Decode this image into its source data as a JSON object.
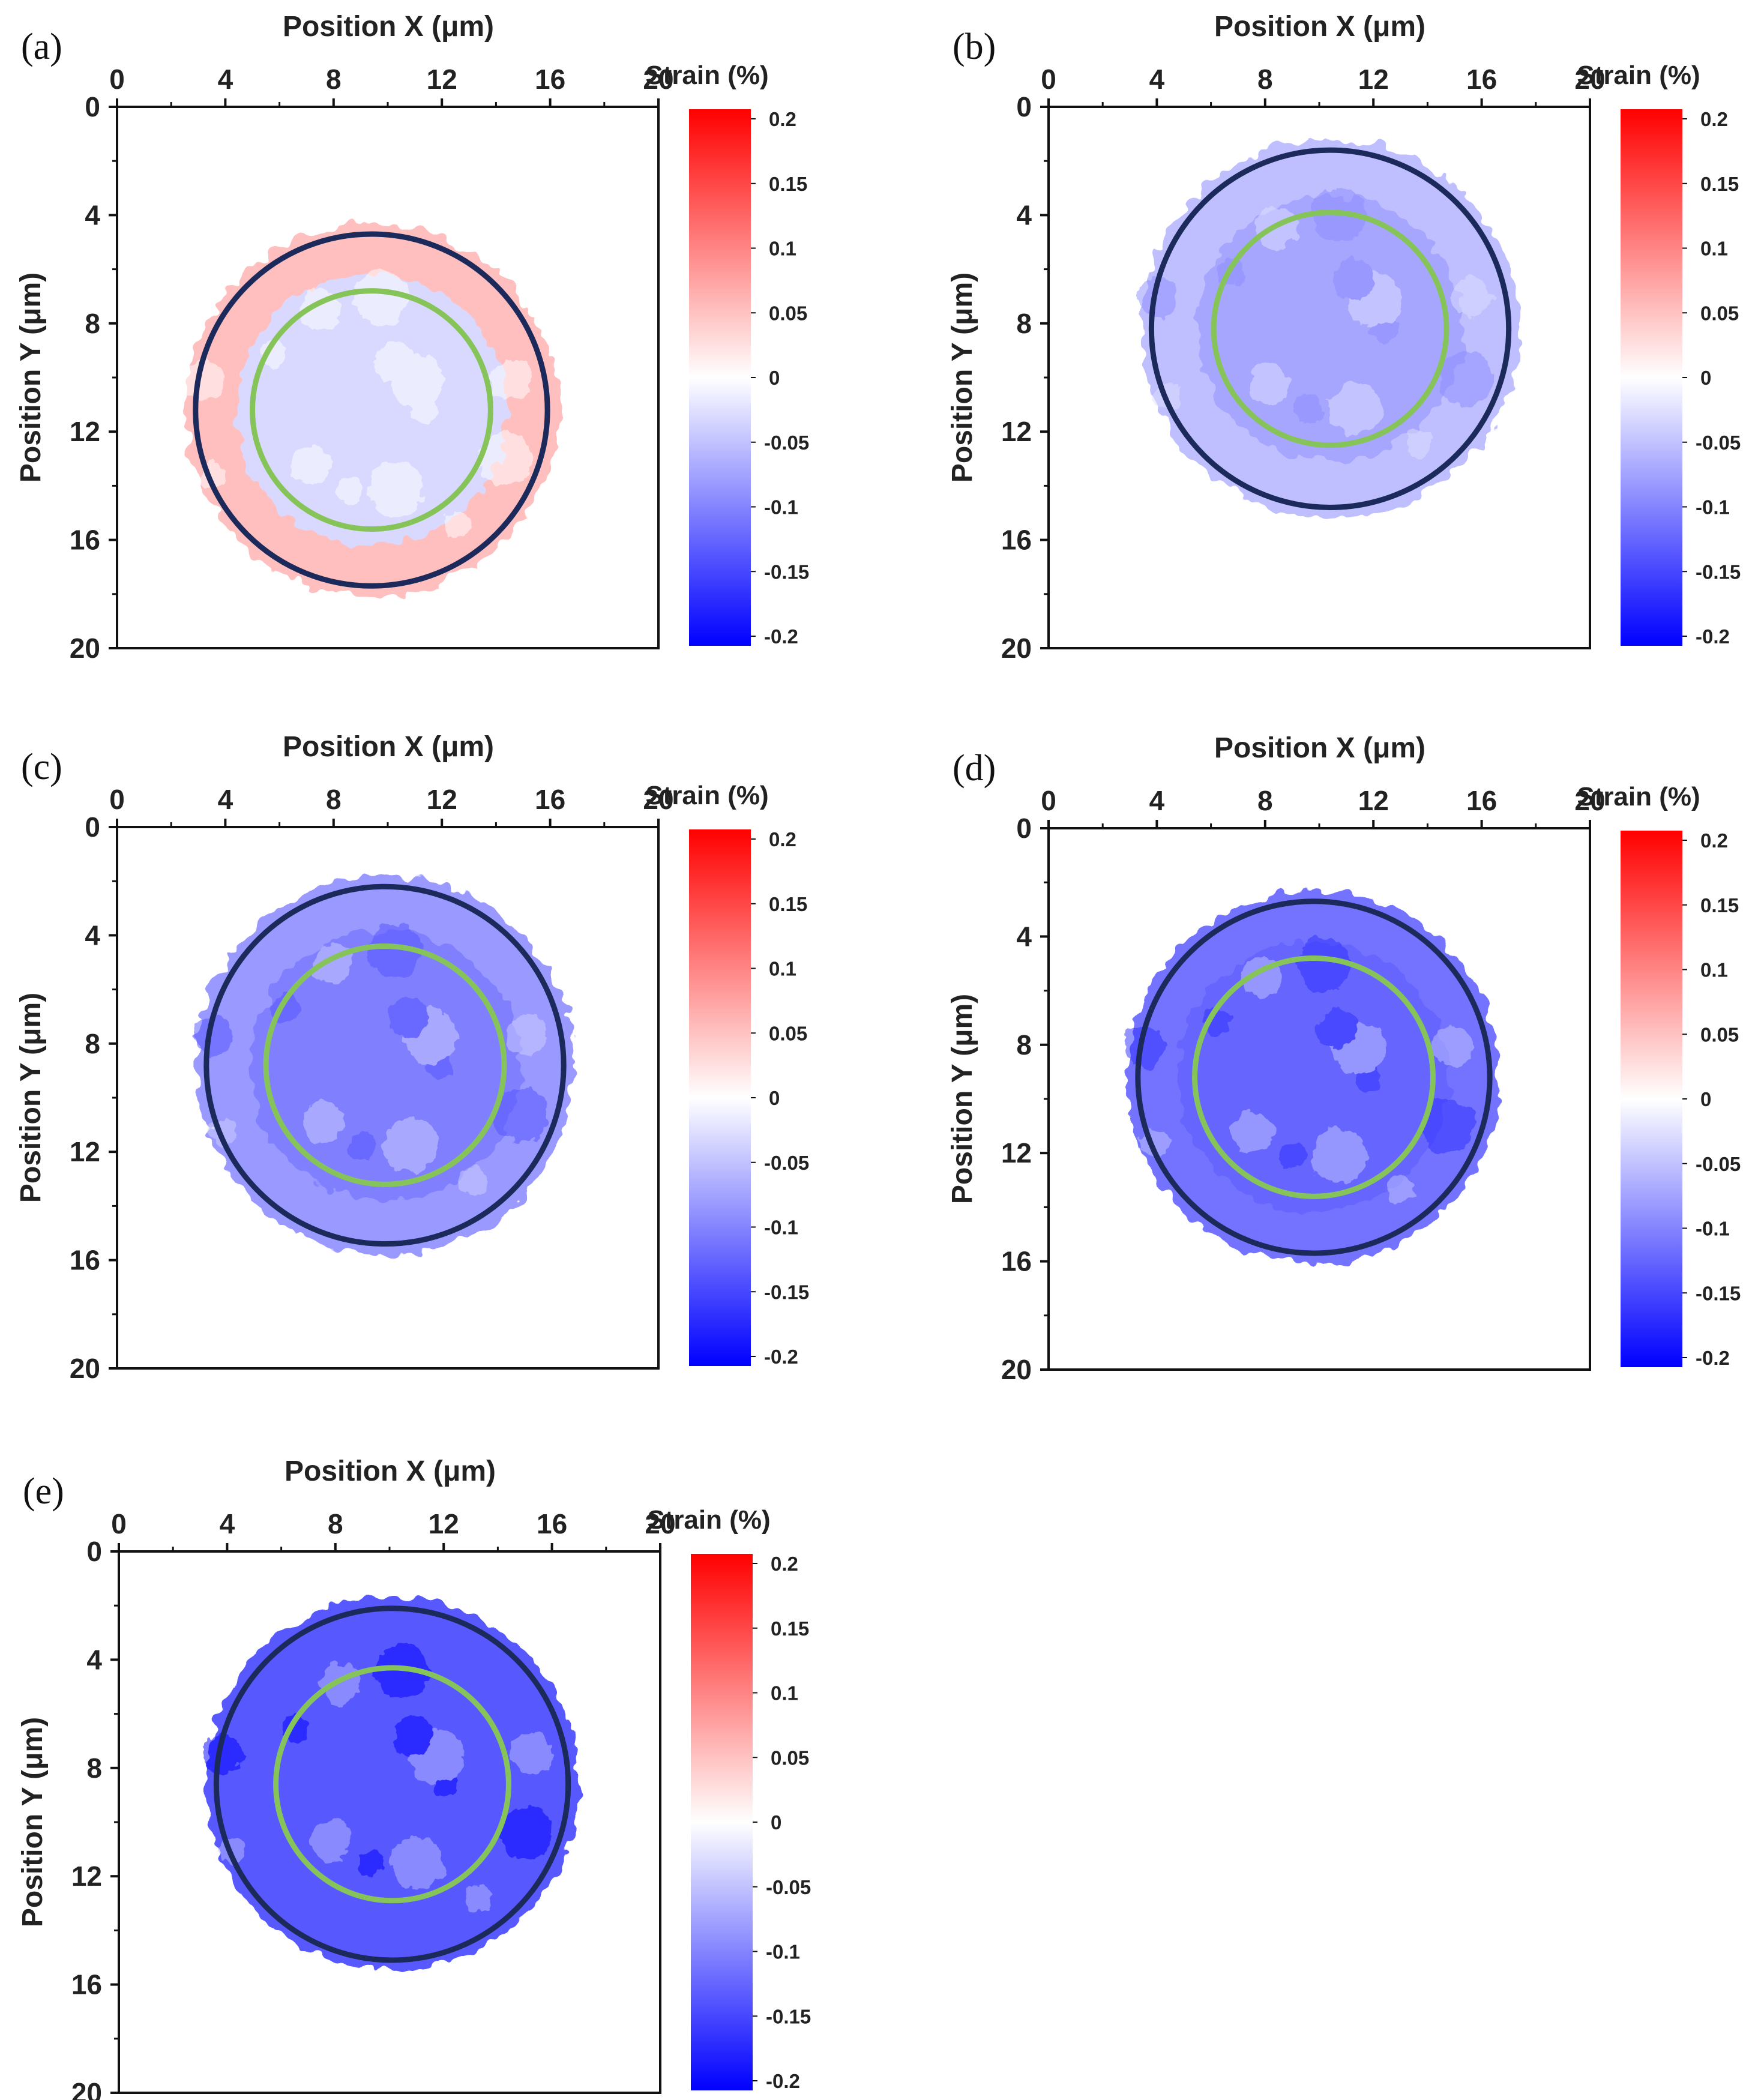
{
  "chart_data": [
    {
      "type": "heatmap",
      "panel_label": "(a)",
      "xlabel": "Position X (μm)",
      "ylabel": "Position Y (μm)",
      "xlim": [
        0,
        20
      ],
      "ylim": [
        0,
        20
      ],
      "x_ticks": [
        "0",
        "4",
        "8",
        "12",
        "16",
        "20"
      ],
      "y_ticks": [
        "0",
        "4",
        "8",
        "12",
        "16",
        "20"
      ],
      "colorbar": {
        "title": "Strain (%)",
        "range": [
          -0.2,
          0.2
        ],
        "ticks": [
          "0.2",
          "0.15",
          "0.1",
          "0.05",
          "0",
          "-0.05",
          "-0.1",
          "-0.15",
          "-0.2"
        ]
      },
      "mean_strain": 0.0,
      "outer_ring_strain": 0.05,
      "inner_core_strain": -0.03,
      "outer_circle": {
        "cx": 9.4,
        "cy": 11.2,
        "r": 6.5,
        "color": "#1b2a5a"
      },
      "inner_circle": {
        "cx": 9.4,
        "cy": 11.2,
        "r": 4.4,
        "color": "#86c45a"
      }
    },
    {
      "type": "heatmap",
      "panel_label": "(b)",
      "xlabel": "Position X (μm)",
      "ylabel": "Position Y (μm)",
      "xlim": [
        0,
        20
      ],
      "ylim": [
        0,
        20
      ],
      "x_ticks": [
        "0",
        "4",
        "8",
        "12",
        "16",
        "20"
      ],
      "y_ticks": [
        "0",
        "4",
        "8",
        "12",
        "16",
        "20"
      ],
      "colorbar": {
        "title": "Strain (%)",
        "range": [
          -0.2,
          0.2
        ],
        "ticks": [
          "0.2",
          "0.15",
          "0.1",
          "0.05",
          "0",
          "-0.05",
          "-0.1",
          "-0.15",
          "-0.2"
        ]
      },
      "mean_strain": -0.06,
      "outer_ring_strain": -0.05,
      "inner_core_strain": -0.07,
      "outer_circle": {
        "cx": 10.4,
        "cy": 8.2,
        "r": 6.6,
        "color": "#1b2a5a"
      },
      "inner_circle": {
        "cx": 10.4,
        "cy": 8.2,
        "r": 4.3,
        "color": "#86c45a"
      }
    },
    {
      "type": "heatmap",
      "panel_label": "(c)",
      "xlabel": "Position X (μm)",
      "ylabel": "Position Y (μm)",
      "xlim": [
        0,
        20
      ],
      "ylim": [
        0,
        20
      ],
      "x_ticks": [
        "0",
        "4",
        "8",
        "12",
        "16",
        "20"
      ],
      "y_ticks": [
        "0",
        "4",
        "8",
        "12",
        "16",
        "20"
      ],
      "colorbar": {
        "title": "Strain (%)",
        "range": [
          -0.2,
          0.2
        ],
        "ticks": [
          "0.2",
          "0.15",
          "0.1",
          "0.05",
          "0",
          "-0.05",
          "-0.1",
          "-0.15",
          "-0.2"
        ]
      },
      "mean_strain": -0.09,
      "outer_ring_strain": -0.08,
      "inner_core_strain": -0.1,
      "outer_circle": {
        "cx": 9.9,
        "cy": 8.8,
        "r": 6.6,
        "color": "#1b2a5a"
      },
      "inner_circle": {
        "cx": 9.9,
        "cy": 8.8,
        "r": 4.4,
        "color": "#86c45a"
      }
    },
    {
      "type": "heatmap",
      "panel_label": "(d)",
      "xlabel": "Position X (μm)",
      "ylabel": "Position Y (μm)",
      "xlim": [
        0,
        20
      ],
      "ylim": [
        0,
        20
      ],
      "x_ticks": [
        "0",
        "4",
        "8",
        "12",
        "16",
        "20"
      ],
      "y_ticks": [
        "0",
        "4",
        "8",
        "12",
        "16",
        "20"
      ],
      "colorbar": {
        "title": "Strain (%)",
        "range": [
          -0.2,
          0.2
        ],
        "ticks": [
          "0.2",
          "0.15",
          "0.1",
          "0.05",
          "0",
          "-0.05",
          "-0.1",
          "-0.15",
          "-0.2"
        ]
      },
      "mean_strain": -0.11,
      "outer_ring_strain": -0.11,
      "inner_core_strain": -0.12,
      "outer_circle": {
        "cx": 9.8,
        "cy": 9.2,
        "r": 6.5,
        "color": "#1b2a5a"
      },
      "inner_circle": {
        "cx": 9.8,
        "cy": 9.2,
        "r": 4.4,
        "color": "#86c45a"
      }
    },
    {
      "type": "heatmap",
      "panel_label": "(e)",
      "xlabel": "Position X (μm)",
      "ylabel": "Position Y (μm)",
      "xlim": [
        0,
        20
      ],
      "ylim": [
        0,
        20
      ],
      "x_ticks": [
        "0",
        "4",
        "8",
        "12",
        "16",
        "20"
      ],
      "y_ticks": [
        "0",
        "4",
        "8",
        "12",
        "16",
        "20"
      ],
      "colorbar": {
        "title": "Strain (%)",
        "range": [
          -0.2,
          0.2
        ],
        "ticks": [
          "0.2",
          "0.15",
          "0.1",
          "0.05",
          "0",
          "-0.05",
          "-0.1",
          "-0.15",
          "-0.2"
        ]
      },
      "mean_strain": -0.13,
      "outer_ring_strain": -0.13,
      "inner_core_strain": -0.13,
      "outer_circle": {
        "cx": 10.1,
        "cy": 8.6,
        "r": 6.5,
        "color": "#1b2a5a"
      },
      "inner_circle": {
        "cx": 10.1,
        "cy": 8.6,
        "r": 4.3,
        "color": "#86c45a"
      }
    }
  ],
  "colors": {
    "positive": "#ff0000",
    "zero": "#ffffff",
    "negative": "#0000ff",
    "outer_circle": "#1b2a5a",
    "inner_circle": "#86c45a"
  }
}
